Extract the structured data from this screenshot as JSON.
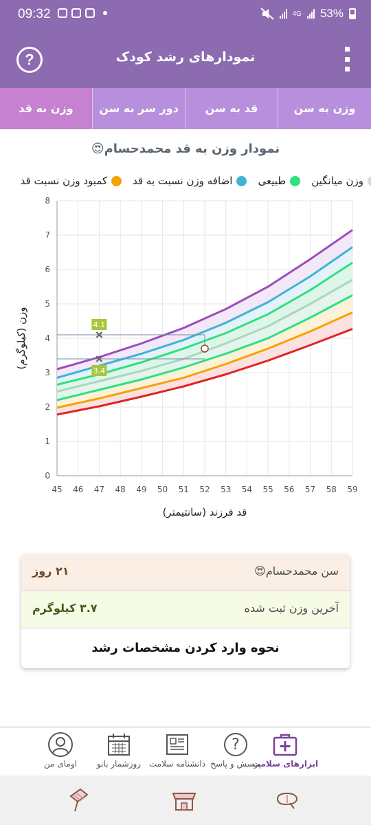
{
  "status_bar": {
    "time": "09:32",
    "network": "4G",
    "battery": "53%"
  },
  "header": {
    "title": "نمودارهای رشد کودک",
    "help_label": "?"
  },
  "tabs": [
    {
      "label": "وزن به سن"
    },
    {
      "label": "قد به سن"
    },
    {
      "label": "دور سر به سن"
    },
    {
      "label": "وزن به قد"
    }
  ],
  "chart_title": "نمودار وزن به قد محمدحسام😍",
  "legend": [
    {
      "label": "وزن میانگین",
      "color": "#d9d9d9"
    },
    {
      "label": "طبیعی",
      "color": "#2fe07f"
    },
    {
      "label": "اضافه وزن نسبت به قد",
      "color": "#3fb3d6"
    },
    {
      "label": "کمبود وزن نسبت قد",
      "color": "#f5a300"
    }
  ],
  "chart_data": {
    "type": "line",
    "title": "نمودار وزن به قد محمدحسام😍",
    "xlabel": "قد فرزند (سانتیمتر)",
    "ylabel": "وزن (کیلوگرم)",
    "xlim": [
      45,
      59
    ],
    "ylim": [
      0,
      8
    ],
    "x_ticks": [
      "45",
      "46",
      "47",
      "48",
      "49",
      "50",
      "51",
      "52",
      "53",
      "54",
      "55",
      "56",
      "57",
      "58",
      "59"
    ],
    "y_ticks": [
      "0",
      "1",
      "2",
      "3",
      "4",
      "5",
      "6",
      "7",
      "8"
    ],
    "grid": true,
    "x": [
      45,
      47,
      49,
      51,
      53,
      55,
      57,
      59
    ],
    "series": [
      {
        "color": "#9b4dbb",
        "values": [
          3.1,
          3.45,
          3.85,
          4.3,
          4.85,
          5.5,
          6.3,
          7.15
        ]
      },
      {
        "color": "#3fb3d6",
        "values": [
          2.85,
          3.2,
          3.55,
          3.95,
          4.45,
          5.05,
          5.8,
          6.65
        ]
      },
      {
        "color": "#2fe07f",
        "values": [
          2.65,
          2.95,
          3.3,
          3.7,
          4.15,
          4.7,
          5.4,
          6.2
        ]
      },
      {
        "color": "#a8d8bb",
        "values": [
          2.45,
          2.75,
          3.05,
          3.4,
          3.85,
          4.35,
          5.0,
          5.7
        ]
      },
      {
        "color": "#2fe07f",
        "values": [
          2.2,
          2.5,
          2.8,
          3.15,
          3.55,
          4.0,
          4.6,
          5.25
        ]
      },
      {
        "color": "#f5a300",
        "values": [
          1.98,
          2.25,
          2.55,
          2.85,
          3.25,
          3.7,
          4.2,
          4.75
        ]
      },
      {
        "color": "#e02424",
        "values": [
          1.78,
          2.02,
          2.3,
          2.6,
          2.95,
          3.35,
          3.8,
          4.27
        ]
      }
    ],
    "band_fills": [
      "#f1e4f7",
      "#dff0f8",
      "#d8f5e6",
      "#e0f3ea",
      "#fbf0d4",
      "#fcdcdc"
    ],
    "markers": [
      {
        "x": 47,
        "y": 4.1,
        "label": "4.1"
      },
      {
        "x": 47,
        "y": 3.4,
        "label": "3.4"
      }
    ],
    "point": {
      "x": 52,
      "y": 3.7
    }
  },
  "info_card": {
    "age_label": "سن محمدحسام😍",
    "age_value": "۲۱ روز",
    "weight_label": "آخرین وزن ثبت شده",
    "weight_value": "۳.۷ کیلوگرم",
    "help_link": "نحوه وارد کردن مشخصات رشد"
  },
  "bottom_nav": [
    {
      "label": "ابزارهای سلامت",
      "icon": "first-aid-kit-icon",
      "active": true
    },
    {
      "label": "پرسش و پاسخ",
      "icon": "question-bubble-icon"
    },
    {
      "label": "دانشنامه سلامت",
      "icon": "newspaper-icon"
    },
    {
      "label": "روزشمار بانو",
      "icon": "calendar-icon"
    },
    {
      "label": "اومای من",
      "icon": "profile-avatar-icon"
    }
  ],
  "system_nav": [
    {
      "icon": "ice-cream-icon"
    },
    {
      "icon": "shop-icon"
    },
    {
      "icon": "pill-icon"
    }
  ]
}
